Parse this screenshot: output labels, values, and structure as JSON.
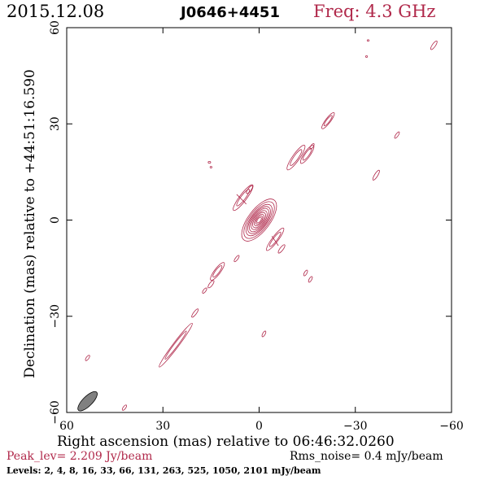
{
  "header": {
    "date": "2015.12.08",
    "source": "J0646+4451",
    "freq": "Freq: 4.3 GHz"
  },
  "footer": {
    "peak": "Peak_lev=  2.209 Jy/beam",
    "rms": "Rms_noise=  0.4 mJy/beam",
    "levels": "Levels:   2,   4,   8,  16,  33,  66, 131, 263, 525, 1050, 2101 mJy/beam"
  },
  "chart_data": {
    "type": "contour",
    "xlabel": "Right ascension (mas) relative to 06:46:32.0260",
    "ylabel": "Declination (mas) relative to +44:51:16.590",
    "xlim": [
      60,
      -60
    ],
    "ylim": [
      -60,
      60
    ],
    "x_ticks": [
      60,
      30,
      0,
      -30,
      -60
    ],
    "y_ticks": [
      -60,
      -30,
      0,
      30,
      60
    ],
    "x_tick_labels": [
      "60",
      "30",
      "0",
      "−30",
      "−60"
    ],
    "y_tick_labels": [
      "−60",
      "−30",
      "0",
      "30",
      "60"
    ],
    "colors": {
      "contour": "#b0284a",
      "beam": "#808080",
      "axes": "#000000"
    },
    "core": {
      "x": 0,
      "y": 0,
      "angle_deg": 53,
      "rx": [
        1.0,
        1.5,
        2.1,
        2.8,
        3.5,
        4.3,
        5.0,
        5.8,
        6.8,
        7.8
      ],
      "ry": [
        0.5,
        0.8,
        1.1,
        1.4,
        1.7,
        2.0,
        2.3,
        2.6,
        3.0,
        3.4
      ]
    },
    "features": [
      {
        "x": 5,
        "y": 7,
        "rx": 3.2,
        "ry": 0.7,
        "angle_deg": 53,
        "n": 2
      },
      {
        "x": 3,
        "y": 9.5,
        "rx": 1.5,
        "ry": 0.5,
        "angle_deg": 53,
        "n": 1
      },
      {
        "x": -5,
        "y": -6,
        "rx": 2.8,
        "ry": 0.6,
        "angle_deg": 53,
        "n": 2
      },
      {
        "x": -7,
        "y": -9,
        "rx": 1.6,
        "ry": 0.5,
        "angle_deg": 53,
        "n": 1
      },
      {
        "x": 7,
        "y": -12,
        "rx": 1.2,
        "ry": 0.4,
        "angle_deg": 53,
        "n": 1
      },
      {
        "x": 13,
        "y": -16,
        "rx": 2.2,
        "ry": 0.6,
        "angle_deg": 53,
        "n": 2
      },
      {
        "x": 15,
        "y": -20,
        "rx": 1.4,
        "ry": 0.5,
        "angle_deg": 53,
        "n": 1
      },
      {
        "x": 17,
        "y": -22,
        "rx": 1.0,
        "ry": 0.4,
        "angle_deg": 53,
        "n": 1
      },
      {
        "x": 20,
        "y": -29,
        "rx": 1.6,
        "ry": 0.45,
        "angle_deg": 53,
        "n": 1
      },
      {
        "x": 26,
        "y": -39,
        "rx": 5.5,
        "ry": 0.55,
        "angle_deg": 53,
        "n": 2
      },
      {
        "x": 53.5,
        "y": -43,
        "rx": 1.0,
        "ry": 0.4,
        "angle_deg": 53,
        "n": 1
      },
      {
        "x": 42,
        "y": -58.5,
        "rx": 1.0,
        "ry": 0.4,
        "angle_deg": 53,
        "n": 1
      },
      {
        "x": -1.5,
        "y": -35.5,
        "rx": 1.0,
        "ry": 0.4,
        "angle_deg": 60,
        "n": 1
      },
      {
        "x": -14.5,
        "y": -16.5,
        "rx": 1.0,
        "ry": 0.4,
        "angle_deg": 60,
        "n": 1
      },
      {
        "x": -16,
        "y": -18.5,
        "rx": 1.0,
        "ry": 0.4,
        "angle_deg": 60,
        "n": 1
      },
      {
        "x": -11.5,
        "y": 19.5,
        "rx": 3.0,
        "ry": 0.7,
        "angle_deg": 55,
        "n": 2
      },
      {
        "x": -15,
        "y": 20.5,
        "rx": 2.2,
        "ry": 0.6,
        "angle_deg": 55,
        "n": 2
      },
      {
        "x": -16.5,
        "y": 23,
        "rx": 1.0,
        "ry": 0.4,
        "angle_deg": 55,
        "n": 1
      },
      {
        "x": -21.5,
        "y": 31,
        "rx": 2.0,
        "ry": 0.5,
        "angle_deg": 53,
        "n": 2
      },
      {
        "x": -36.5,
        "y": 14,
        "rx": 1.8,
        "ry": 0.5,
        "angle_deg": 58,
        "n": 1
      },
      {
        "x": -43,
        "y": 26.5,
        "rx": 1.2,
        "ry": 0.4,
        "angle_deg": 55,
        "n": 1
      },
      {
        "x": -54.5,
        "y": 54.5,
        "rx": 1.6,
        "ry": 0.5,
        "angle_deg": 55,
        "n": 1
      },
      {
        "x": 15.5,
        "y": 18,
        "rx": 0.4,
        "ry": 0.3,
        "angle_deg": 0,
        "n": 1
      },
      {
        "x": 15,
        "y": 16.5,
        "rx": 0.3,
        "ry": 0.25,
        "angle_deg": 0,
        "n": 1
      },
      {
        "x": -33.5,
        "y": 51,
        "rx": 0.3,
        "ry": 0.25,
        "angle_deg": 0,
        "n": 1
      },
      {
        "x": -34,
        "y": 56,
        "rx": 0.3,
        "ry": 0.25,
        "angle_deg": 0,
        "n": 1
      }
    ],
    "jet_bridge": [
      {
        "x1": 4,
        "y1": 5,
        "x2": 7,
        "y2": 8
      },
      {
        "x1": -4,
        "y1": -5,
        "x2": -6,
        "y2": -8
      }
    ],
    "beam": {
      "x": 53.5,
      "y": -56.5,
      "rx": 4.0,
      "ry": 1.5,
      "angle_deg": 45
    }
  }
}
